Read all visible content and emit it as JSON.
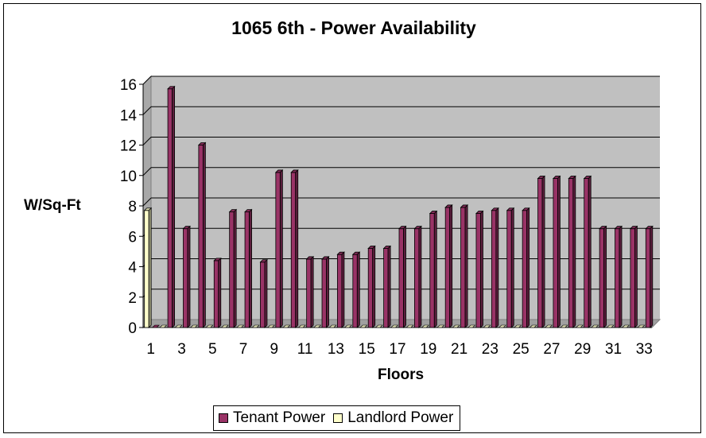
{
  "chart_data": {
    "type": "bar",
    "title": "1065 6th - Power Availability",
    "xlabel": "Floors",
    "ylabel": "W/Sq-Ft",
    "ylim": [
      0,
      16
    ],
    "yticks": [
      0,
      2,
      4,
      6,
      8,
      10,
      12,
      14,
      16
    ],
    "categories": [
      1,
      2,
      3,
      4,
      5,
      6,
      7,
      8,
      9,
      10,
      11,
      12,
      13,
      14,
      15,
      16,
      17,
      18,
      19,
      20,
      21,
      22,
      23,
      24,
      25,
      26,
      27,
      28,
      29,
      30,
      31,
      32,
      33
    ],
    "xtick_labels": [
      "1",
      "3",
      "5",
      "7",
      "9",
      "11",
      "13",
      "15",
      "17",
      "19",
      "21",
      "23",
      "25",
      "27",
      "29",
      "31",
      "33"
    ],
    "grid": true,
    "legend_position": "bottom",
    "series": [
      {
        "name": "Tenant Power",
        "color": "#993366",
        "values": [
          0,
          15.7,
          6.5,
          12.0,
          4.4,
          7.6,
          7.6,
          4.3,
          10.2,
          10.2,
          4.5,
          4.5,
          4.8,
          4.8,
          5.2,
          5.2,
          6.5,
          6.5,
          7.5,
          7.9,
          7.9,
          7.5,
          7.7,
          7.7,
          7.7,
          9.8,
          9.8,
          9.8,
          9.8,
          6.5,
          6.5,
          6.5,
          6.5
        ]
      },
      {
        "name": "Landlord Power",
        "color": "#ffffcc",
        "values": [
          7.7,
          0,
          0,
          0,
          0,
          0,
          0,
          0,
          0,
          0,
          0,
          0,
          0,
          0,
          0,
          0,
          0,
          0,
          0,
          0,
          0,
          0,
          0,
          0,
          0,
          0,
          0,
          0,
          0,
          0,
          0,
          0,
          0
        ]
      }
    ],
    "colors": {
      "plot_background": "#c0c0c0",
      "gridline": "#000000"
    }
  }
}
